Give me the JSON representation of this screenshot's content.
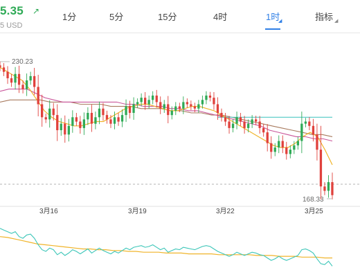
{
  "header": {
    "price": "5.35",
    "price_arrow_icon": "arrow-up-right-icon",
    "price_sub": "5 USD",
    "price_color": "#2faa56"
  },
  "tabs": [
    {
      "label": "1分",
      "active": false
    },
    {
      "label": "5分",
      "active": false
    },
    {
      "label": "15分",
      "active": false
    },
    {
      "label": "4时",
      "active": false
    },
    {
      "label": "1时",
      "active": true
    },
    {
      "label": "指标",
      "active": false
    }
  ],
  "accent_color": "#2f7fe6",
  "chart_data": {
    "type": "candlestick",
    "interval": "1时",
    "high_label": "230.23",
    "low_label": "168.33",
    "x_tick_labels": [
      "3月16",
      "3月19",
      "3月22",
      "3月25"
    ],
    "colors": {
      "up": "#2faa56",
      "down": "#e0413c",
      "ma_fast": "#f0b429",
      "ma_mid": "#c9559a",
      "ma_slow": "#a87a5e",
      "ma_long": "#4fc8c4",
      "indicator_line": "#3cc6b8",
      "indicator_signal": "#f0b429"
    },
    "closes": [
      229,
      227,
      224,
      222,
      226,
      221,
      219,
      223,
      225,
      220,
      212,
      206,
      205,
      210,
      207,
      200,
      203,
      198,
      202,
      206,
      204,
      201,
      205,
      208,
      203,
      206,
      210,
      207,
      205,
      203,
      206,
      204,
      207,
      211,
      208,
      212,
      213,
      215,
      212,
      214,
      216,
      213,
      210,
      212,
      207,
      209,
      211,
      210,
      213,
      212,
      211,
      210,
      212,
      214,
      216,
      215,
      212,
      208,
      206,
      204,
      201,
      203,
      206,
      204,
      201,
      203,
      205,
      204,
      201,
      199,
      194,
      190,
      192,
      195,
      192,
      189,
      191,
      193,
      195,
      203,
      204,
      202,
      198,
      191,
      174,
      172,
      176,
      170
    ],
    "ma_fast": [
      229,
      227,
      225,
      223,
      219,
      214,
      209,
      206,
      204,
      203,
      202,
      202,
      203,
      204,
      204,
      206,
      208,
      210,
      211,
      212,
      212,
      211,
      210,
      209,
      209,
      210,
      211,
      211,
      210,
      209,
      207,
      205,
      203,
      201,
      199,
      197,
      195,
      193,
      192,
      192,
      194,
      197,
      199,
      197,
      191,
      184
    ],
    "ma_mid": [
      218,
      219,
      219,
      219,
      217,
      215,
      214,
      213,
      213,
      213,
      213,
      213,
      213,
      213,
      212,
      212,
      211,
      211,
      211,
      210,
      210,
      209,
      209,
      208,
      207,
      206,
      205,
      204,
      203,
      202,
      200,
      199,
      198,
      197,
      197,
      196,
      196,
      195
    ],
    "ma_slow": [
      213,
      214,
      214,
      214,
      214,
      213,
      213,
      213,
      212,
      212,
      212,
      211,
      211,
      211,
      210,
      210,
      210,
      209,
      209,
      208,
      208,
      207,
      207,
      206,
      205,
      204,
      203,
      202,
      201,
      200,
      199,
      198,
      198,
      197
    ],
    "ma_long_start_index": 57,
    "ma_long": [
      206,
      206,
      206,
      206,
      206,
      206,
      206,
      206,
      206,
      206,
      206,
      206
    ],
    "indicator": [
      70,
      68,
      66,
      64,
      66,
      60,
      58,
      62,
      63,
      58,
      50,
      44,
      42,
      46,
      44,
      38,
      41,
      37,
      40,
      44,
      42,
      39,
      42,
      45,
      40,
      43,
      46,
      43,
      41,
      39,
      42,
      40,
      43,
      46,
      44,
      47,
      48,
      49,
      47,
      48,
      50,
      47,
      44,
      46,
      41,
      43,
      45,
      44,
      47,
      46,
      45,
      44,
      46,
      48,
      49,
      48,
      45,
      42,
      40,
      38,
      36,
      38,
      41,
      39,
      37,
      39,
      41,
      40,
      38,
      37,
      34,
      31,
      33,
      36,
      33,
      31,
      33,
      35,
      37,
      44,
      45,
      43,
      40,
      33,
      27,
      26,
      30,
      24
    ],
    "indicator_signal": [
      60,
      59,
      57,
      55,
      53,
      51,
      50,
      49,
      48,
      47,
      46,
      45,
      45,
      44,
      44,
      43,
      43,
      42,
      42,
      41,
      41,
      41,
      40,
      40,
      40,
      39,
      39,
      39,
      39,
      38,
      38,
      38,
      38,
      38,
      37,
      37,
      37,
      36,
      36,
      36,
      35,
      35,
      35,
      34,
      34
    ]
  }
}
